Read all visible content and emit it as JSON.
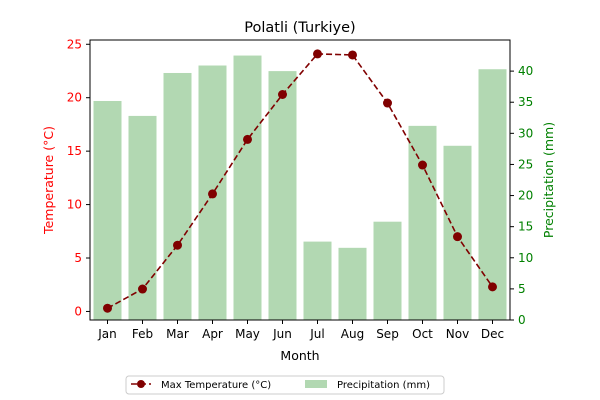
{
  "chart_data": {
    "type": "bar+line",
    "title": "Polatli (Turkiye)",
    "xlabel": "Month",
    "categories": [
      "Jan",
      "Feb",
      "Mar",
      "Apr",
      "May",
      "Jun",
      "Jul",
      "Aug",
      "Sep",
      "Oct",
      "Nov",
      "Dec"
    ],
    "left_axis": {
      "label": "Temperature (°C)",
      "color": "#ff0000",
      "ylim": [
        -0.8,
        25.4
      ],
      "ticks": [
        0,
        5,
        10,
        15,
        20,
        25
      ]
    },
    "right_axis": {
      "label": "Precipitation (mm)",
      "color": "#008000",
      "ylim": [
        0,
        45
      ],
      "ticks": [
        0,
        5,
        10,
        15,
        20,
        25,
        30,
        35,
        40
      ]
    },
    "series": [
      {
        "name": "Max Temperature (°C)",
        "type": "line",
        "axis": "left",
        "color": "#800000",
        "style": "dashed",
        "marker": "circle",
        "values": [
          0.3,
          2.1,
          6.2,
          11.0,
          16.1,
          20.3,
          24.1,
          24.0,
          19.5,
          13.7,
          7.0,
          2.3
        ]
      },
      {
        "name": "Precipitation (mm)",
        "type": "bar",
        "axis": "right",
        "color": "#b2d8b2",
        "values": [
          35.2,
          32.8,
          39.7,
          40.9,
          42.5,
          40.0,
          12.6,
          11.6,
          15.8,
          31.2,
          28.0,
          40.3
        ]
      }
    ],
    "legend": {
      "placement": "bottom-center",
      "columns": 2
    },
    "grid": false
  }
}
